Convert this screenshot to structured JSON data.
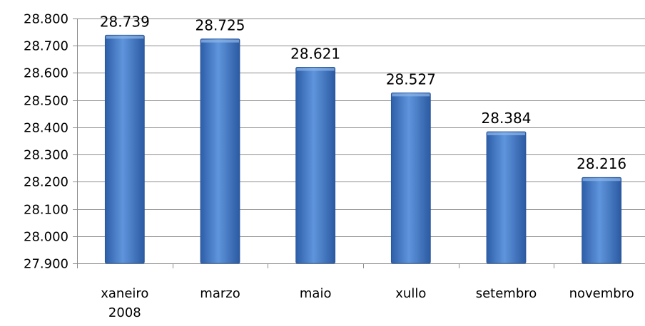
{
  "chart_data": {
    "type": "bar",
    "categories": [
      [
        "xaneiro",
        "2008"
      ],
      [
        "marzo"
      ],
      [
        "maio"
      ],
      [
        "xullo"
      ],
      [
        "setembro"
      ],
      [
        "novembro"
      ]
    ],
    "values": [
      28739,
      28725,
      28621,
      28527,
      28384,
      28216
    ],
    "data_labels": [
      "28.739",
      "28.725",
      "28.621",
      "28.527",
      "28.384",
      "28.216"
    ],
    "ylim": [
      27900,
      28800
    ],
    "y_ticks": [
      27900,
      28000,
      28100,
      28200,
      28300,
      28400,
      28500,
      28600,
      28700,
      28800
    ],
    "y_tick_labels": [
      "27.900",
      "28.000",
      "28.100",
      "28.200",
      "28.300",
      "28.400",
      "28.500",
      "28.600",
      "28.700",
      "28.800"
    ],
    "grid": true,
    "legend": "none",
    "bar_color": "#4a7ec8"
  }
}
